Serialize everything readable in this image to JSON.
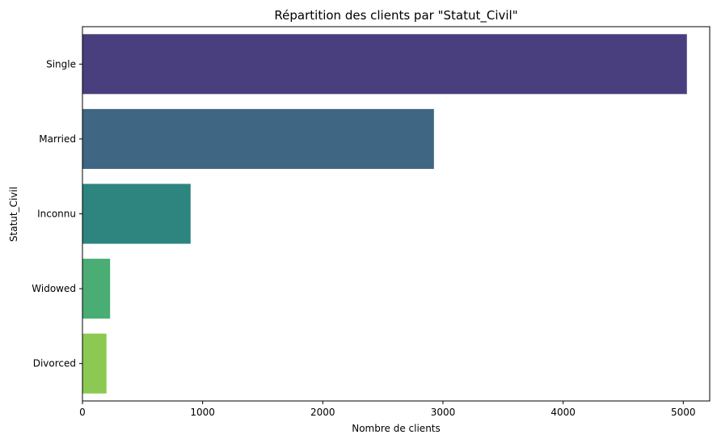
{
  "chart_data": {
    "type": "bar",
    "orientation": "horizontal",
    "title": "Répartition des clients par \"Statut_Civil\"",
    "xlabel": "Nombre de clients",
    "ylabel": "Statut_Civil",
    "categories": [
      "Single",
      "Married",
      "Inconnu",
      "Widowed",
      "Divorced"
    ],
    "values": [
      5030,
      2925,
      900,
      230,
      200
    ],
    "colors": [
      "#4a3f7e",
      "#3f6682",
      "#2e847f",
      "#49ad74",
      "#8cc952"
    ],
    "xlim": [
      0,
      5220
    ],
    "xticks": [
      0,
      1000,
      2000,
      3000,
      4000,
      5000
    ],
    "grid": false,
    "legend": "none"
  }
}
